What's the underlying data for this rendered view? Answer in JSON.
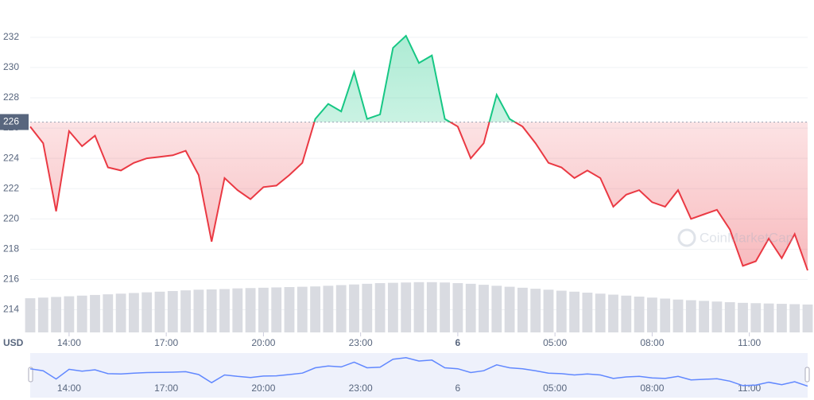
{
  "chart_data": {
    "type": "line",
    "x": [
      12.8,
      13.2,
      13.6,
      14,
      14.4,
      14.8,
      15.2,
      15.6,
      16,
      16.4,
      16.8,
      17.2,
      17.6,
      18,
      18.4,
      18.8,
      19.2,
      19.6,
      20,
      20.4,
      20.8,
      21.2,
      21.6,
      22,
      22.4,
      22.8,
      23.2,
      23.6,
      24,
      24.4,
      24.8,
      25.2,
      25.6,
      26,
      26.4,
      26.8,
      27.2,
      27.6,
      28,
      28.4,
      28.8,
      29.2,
      29.6,
      30,
      30.4,
      30.8,
      31.2,
      31.6,
      32,
      32.4,
      32.8,
      33.2,
      33.6,
      34,
      34.4,
      34.8,
      35.2,
      35.6,
      36,
      36.4,
      36.8
    ],
    "series": [
      {
        "name": "Price",
        "color": "#ea3943",
        "color_above": "#16c784",
        "values": [
          226.1,
          225.0,
          220.5,
          225.8,
          224.8,
          225.5,
          223.4,
          223.2,
          223.7,
          224.0,
          224.1,
          224.2,
          224.5,
          222.9,
          218.5,
          222.7,
          221.9,
          221.3,
          222.1,
          222.2,
          222.9,
          223.7,
          226.6,
          227.6,
          227.1,
          229.7,
          226.6,
          226.9,
          231.3,
          232.1,
          230.3,
          230.8,
          226.6,
          226.1,
          224.0,
          225.0,
          228.2,
          226.6,
          226.1,
          225.0,
          223.7,
          223.4,
          222.7,
          223.2,
          222.7,
          220.8,
          221.6,
          221.9,
          221.1,
          220.8,
          221.9,
          220.0,
          220.3,
          220.6,
          219.3,
          216.9,
          217.2,
          218.7,
          217.4,
          219.0,
          216.6
        ]
      },
      {
        "name": "Volume",
        "color": "#d9dbe1",
        "axis": "y2",
        "values": [
          10.4,
          10.6,
          10.8,
          11.0,
          11.2,
          11.4,
          11.6,
          11.8,
          12.0,
          12.2,
          12.4,
          12.6,
          12.8,
          13.0,
          13.1,
          13.2,
          13.4,
          13.5,
          13.6,
          13.7,
          13.8,
          13.9,
          14.0,
          14.2,
          14.4,
          14.6,
          14.8,
          15.0,
          15.1,
          15.2,
          15.3,
          15.3,
          15.2,
          15.0,
          14.8,
          14.5,
          14.2,
          13.9,
          13.6,
          13.3,
          13.0,
          12.7,
          12.4,
          12.1,
          11.8,
          11.5,
          11.2,
          10.9,
          10.6,
          10.3,
          10.0,
          9.8,
          9.6,
          9.4,
          9.2,
          9.0,
          8.9,
          8.8,
          8.7,
          8.6,
          8.5
        ]
      }
    ],
    "reference": {
      "value": 226.4,
      "label": "226"
    },
    "xlim": [
      12.8,
      36.8
    ],
    "xticks": [
      {
        "value": 14,
        "label": "14:00"
      },
      {
        "value": 17,
        "label": "17:00"
      },
      {
        "value": 20,
        "label": "20:00"
      },
      {
        "value": 23,
        "label": "23:00"
      },
      {
        "value": 26,
        "label": "6"
      },
      {
        "value": 29,
        "label": "05:00"
      },
      {
        "value": 32,
        "label": "08:00"
      },
      {
        "value": 35,
        "label": "11:00"
      }
    ],
    "ylim": [
      212.5,
      234.2
    ],
    "yticks": [
      214,
      216,
      218,
      220,
      222,
      224,
      226,
      228,
      230,
      232
    ],
    "y2lim": [
      0,
      100
    ],
    "grid": true,
    "currency": "USD",
    "watermark": "CoinMarketCap"
  }
}
